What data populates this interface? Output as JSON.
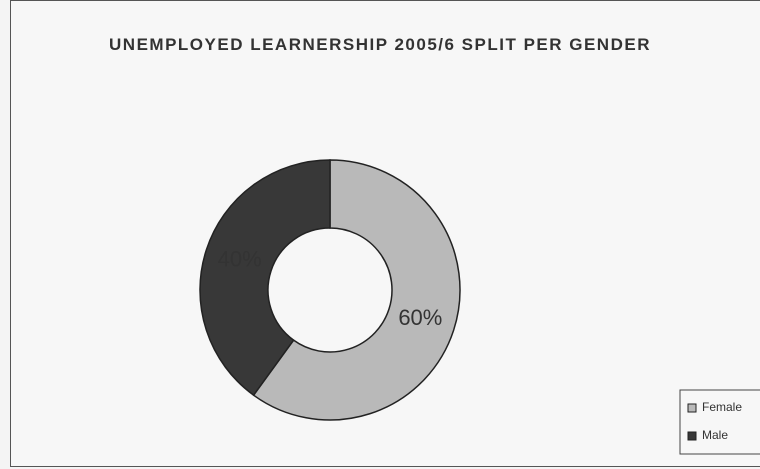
{
  "chart_data": {
    "type": "donut",
    "title": "UNEMPLOYED LEARNERSHIP 2005/6 SPLIT PER GENDER",
    "categories": [
      "Female",
      "Male"
    ],
    "values": [
      60,
      40
    ],
    "value_labels": [
      "60%",
      "40%"
    ],
    "colors": [
      "#b9b9b9",
      "#383838"
    ],
    "legend": "bottom-right"
  }
}
